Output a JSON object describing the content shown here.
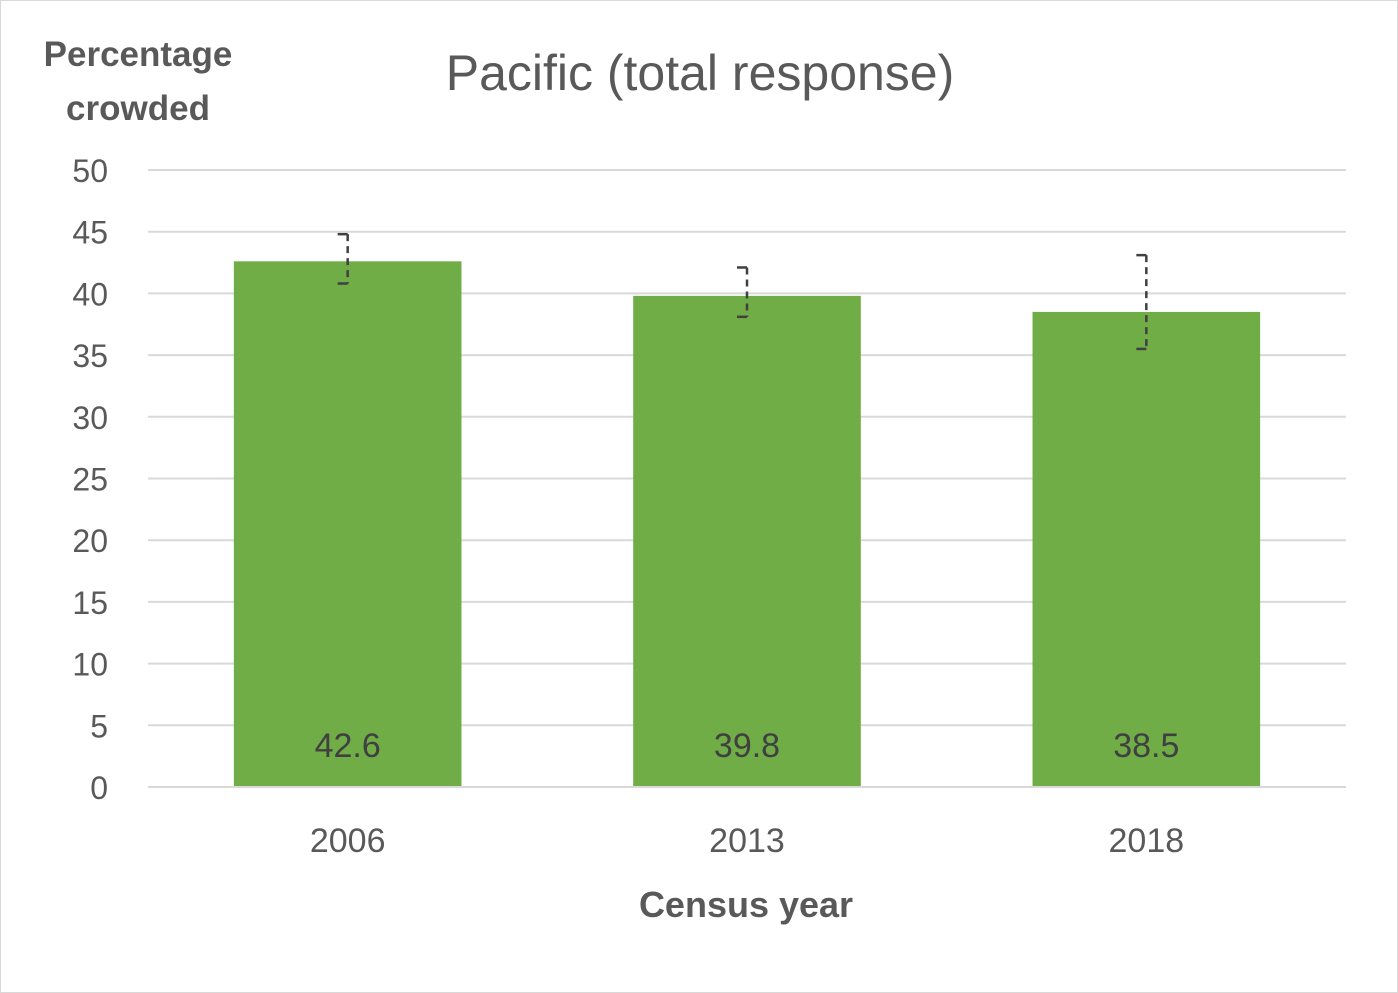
{
  "chart_data": {
    "type": "bar",
    "title": "Pacific (total response)",
    "ylabel_lines": [
      "Percentage",
      "crowded"
    ],
    "xlabel": "Census year",
    "categories": [
      "2006",
      "2013",
      "2018"
    ],
    "values": [
      42.6,
      39.8,
      38.5
    ],
    "value_labels": [
      "42.6",
      "39.8",
      "38.5"
    ],
    "error_bars": [
      {
        "low": 40.8,
        "high": 44.8
      },
      {
        "low": 38.1,
        "high": 42.1
      },
      {
        "low": 35.5,
        "high": 43.1
      }
    ],
    "ylim": [
      0,
      50
    ],
    "yticks": [
      "0",
      "5",
      "10",
      "15",
      "20",
      "25",
      "30",
      "35",
      "40",
      "45",
      "50"
    ],
    "grid": true,
    "legend": "none"
  },
  "colors": {
    "bar": "#70ad47",
    "gridline": "#d9d9d9",
    "text": "#595959",
    "error_bar": "#404040",
    "value_label": "#404040"
  }
}
